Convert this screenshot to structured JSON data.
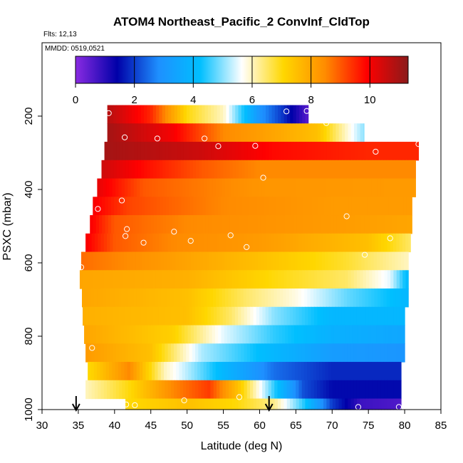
{
  "chart_data": {
    "type": "heatmap",
    "title": "ATOM4 Northeast_Pacific_2 ConvInf_CldTop",
    "flights_label": "Flts: 12,13",
    "dates_label": "MMDD: 0519,0521",
    "xlabel": "Latitude (deg N)",
    "ylabel": "PSXC (mbar)",
    "xlim": [
      30,
      85
    ],
    "ylim": [
      1000,
      0
    ],
    "x_ticks": [
      "30",
      "35",
      "40",
      "45",
      "50",
      "55",
      "60",
      "65",
      "70",
      "75",
      "80",
      "85"
    ],
    "y_ticks": [
      "200",
      "400",
      "600",
      "800",
      "1000"
    ],
    "colorbar": {
      "range": [
        0,
        11.3
      ],
      "ticks": [
        "0",
        "2",
        "4",
        "6",
        "8",
        "10"
      ],
      "stops": [
        "#8a2be2",
        "#0000a8",
        "#1e90ff",
        "#00bfff",
        "#ffffff",
        "#ffd700",
        "#ff8c00",
        "#ff0000",
        "#8b1a1a"
      ]
    },
    "pressure_bands": [
      {
        "p": [
          170,
          220
        ],
        "lat": [
          39.0,
          66.7
        ],
        "values": [
          [
            39,
            10.8
          ],
          [
            45,
            9.5
          ],
          [
            50,
            7
          ],
          [
            55,
            6
          ],
          [
            60,
            3
          ],
          [
            63,
            2
          ],
          [
            66.7,
            0.5
          ]
        ]
      },
      {
        "p": [
          220,
          270
        ],
        "lat": [
          39.0,
          74.4
        ],
        "values": [
          [
            39,
            11
          ],
          [
            48,
            10
          ],
          [
            55,
            8.5
          ],
          [
            62,
            8
          ],
          [
            68,
            7.5
          ],
          [
            74.4,
            5
          ]
        ]
      },
      {
        "p": [
          270,
          320
        ],
        "lat": [
          38.6,
          81.9
        ],
        "values": [
          [
            38.6,
            11
          ],
          [
            52,
            10.5
          ],
          [
            62,
            9.8
          ],
          [
            75,
            9.5
          ],
          [
            81.9,
            9.5
          ]
        ]
      },
      {
        "p": [
          320,
          370
        ],
        "lat": [
          38.2,
          81.5
        ],
        "values": [
          [
            38.2,
            10.5
          ],
          [
            44,
            9.8
          ],
          [
            52,
            9
          ],
          [
            60,
            8.5
          ],
          [
            70,
            8.5
          ],
          [
            81.5,
            8.5
          ]
        ]
      },
      {
        "p": [
          370,
          420
        ],
        "lat": [
          37.6,
          81.5
        ],
        "values": [
          [
            37.6,
            10.2
          ],
          [
            44,
            9
          ],
          [
            60,
            8.3
          ],
          [
            81.5,
            8.2
          ]
        ]
      },
      {
        "p": [
          420,
          470
        ],
        "lat": [
          37.0,
          81.0
        ],
        "values": [
          [
            37,
            10
          ],
          [
            42,
            9.2
          ],
          [
            55,
            8.5
          ],
          [
            70,
            8.2
          ],
          [
            81,
            8.2
          ]
        ]
      },
      {
        "p": [
          470,
          520
        ],
        "lat": [
          36.6,
          81.0
        ],
        "values": [
          [
            36.6,
            10
          ],
          [
            40,
            9
          ],
          [
            50,
            8.5
          ],
          [
            70,
            8.2
          ],
          [
            81,
            8
          ]
        ]
      },
      {
        "p": [
          520,
          570
        ],
        "lat": [
          36.0,
          80.8
        ],
        "values": [
          [
            36,
            10
          ],
          [
            40,
            9
          ],
          [
            48,
            8.5
          ],
          [
            60,
            8.2
          ],
          [
            75,
            7.5
          ],
          [
            80.8,
            6.5
          ]
        ]
      },
      {
        "p": [
          570,
          620
        ],
        "lat": [
          35.4,
          80.5
        ],
        "values": [
          [
            35.4,
            8.8
          ],
          [
            45,
            8.3
          ],
          [
            60,
            7.5
          ],
          [
            72,
            6.8
          ],
          [
            80.5,
            6
          ]
        ]
      },
      {
        "p": [
          620,
          670
        ],
        "lat": [
          35.2,
          80.5
        ],
        "values": [
          [
            35.2,
            8
          ],
          [
            50,
            7.8
          ],
          [
            62,
            7
          ],
          [
            72,
            6.5
          ],
          [
            78,
            5.5
          ],
          [
            80.5,
            4
          ]
        ]
      },
      {
        "p": [
          670,
          720
        ],
        "lat": [
          35.5,
          80.5
        ],
        "values": [
          [
            35.5,
            8
          ],
          [
            50,
            7.5
          ],
          [
            58,
            6.5
          ],
          [
            65,
            5.8
          ],
          [
            72,
            4.8
          ],
          [
            80.5,
            4
          ]
        ]
      },
      {
        "p": [
          720,
          770
        ],
        "lat": [
          35.6,
          80.0
        ],
        "values": [
          [
            35.6,
            7.8
          ],
          [
            50,
            7.5
          ],
          [
            56,
            6.5
          ],
          [
            62,
            5
          ],
          [
            70,
            4
          ],
          [
            80,
            4
          ]
        ]
      },
      {
        "p": [
          770,
          820
        ],
        "lat": [
          35.8,
          80.0
        ],
        "values": [
          [
            35.8,
            8
          ],
          [
            48,
            7.2
          ],
          [
            55,
            5.5
          ],
          [
            62,
            4.5
          ],
          [
            70,
            3.8
          ],
          [
            80,
            3.5
          ]
        ]
      },
      {
        "p": [
          820,
          870
        ],
        "lat": [
          36.0,
          80.0
        ],
        "values": [
          [
            36,
            8.2
          ],
          [
            45,
            7.5
          ],
          [
            52,
            5.2
          ],
          [
            60,
            4.2
          ],
          [
            70,
            3.2
          ],
          [
            80,
            3
          ]
        ]
      },
      {
        "p": [
          870,
          920
        ],
        "lat": [
          36.3,
          79.5
        ],
        "values": [
          [
            36.3,
            7
          ],
          [
            42,
            8.5
          ],
          [
            47,
            6
          ],
          [
            55,
            4
          ],
          [
            62,
            2.5
          ],
          [
            70,
            1.8
          ],
          [
            79.5,
            1.8
          ]
        ]
      },
      {
        "p": [
          920,
          970
        ],
        "lat": [
          36.0,
          79.5
        ],
        "values": [
          [
            36,
            6
          ],
          [
            42,
            7
          ],
          [
            48,
            8.5
          ],
          [
            53,
            9.3
          ],
          [
            57,
            7.5
          ],
          [
            62,
            4.5
          ],
          [
            66,
            2.2
          ],
          [
            70,
            1.5
          ],
          [
            79.5,
            1.5
          ]
        ]
      },
      {
        "p": [
          970,
          1000
        ],
        "lat": [
          41.5,
          79.5
        ],
        "values": [
          [
            41.5,
            7
          ],
          [
            50,
            7.5
          ],
          [
            57,
            7
          ],
          [
            62,
            6.3
          ],
          [
            66,
            4.5
          ],
          [
            70,
            2
          ],
          [
            74,
            0.8
          ],
          [
            79.5,
            0.6
          ]
        ]
      }
    ],
    "obs_points": [
      [
        39.2,
        192
      ],
      [
        41.4,
        258
      ],
      [
        45.9,
        261
      ],
      [
        52.4,
        261
      ],
      [
        54.3,
        282
      ],
      [
        59.4,
        281
      ],
      [
        63.7,
        187
      ],
      [
        66.5,
        186
      ],
      [
        69.2,
        219
      ],
      [
        76.0,
        297
      ],
      [
        81.9,
        276
      ],
      [
        60.5,
        368
      ],
      [
        37.7,
        453
      ],
      [
        41.0,
        430
      ],
      [
        41.7,
        508
      ],
      [
        41.5,
        527
      ],
      [
        44.0,
        545
      ],
      [
        48.2,
        515
      ],
      [
        50.5,
        540
      ],
      [
        56.0,
        525
      ],
      [
        58.2,
        557
      ],
      [
        72.0,
        473
      ],
      [
        78.0,
        533
      ],
      [
        74.5,
        578
      ],
      [
        35.4,
        612
      ],
      [
        36.9,
        832
      ],
      [
        41.6,
        986
      ],
      [
        42.8,
        988
      ],
      [
        49.6,
        975
      ],
      [
        57.2,
        966
      ],
      [
        73.6,
        993
      ],
      [
        79.2,
        993
      ]
    ],
    "arrows_lat": [
      34.7,
      61.3
    ],
    "grid": false,
    "legend": "top"
  }
}
